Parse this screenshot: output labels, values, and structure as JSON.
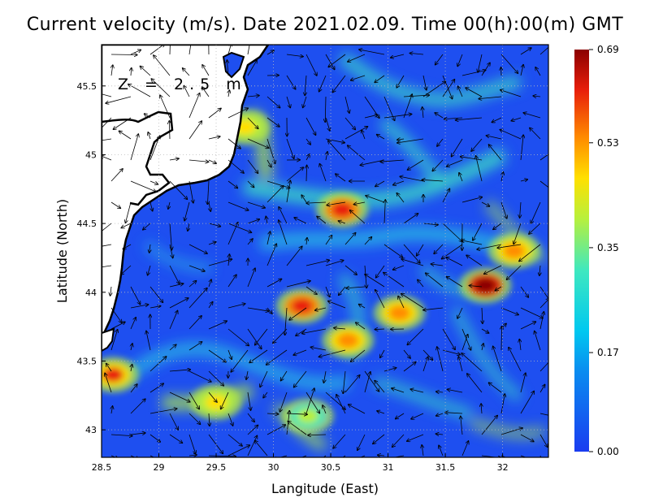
{
  "title": "Current velocity (m/s). Date 2021.02.09. Time 00(h):00(m) GMT",
  "depth_label": "Z = 2.5 m",
  "x_axis": {
    "label": "Langitude (East)",
    "ticks": [
      "28.5",
      "29",
      "29.5",
      "30",
      "30.5",
      "31",
      "31.5",
      "32"
    ],
    "range": [
      28.5,
      32.4
    ]
  },
  "y_axis": {
    "label": "Latitude (North)",
    "ticks": [
      "43",
      "43.5",
      "44",
      "44.5",
      "45",
      "45.5"
    ],
    "range": [
      42.8,
      45.8
    ]
  },
  "colorbar": {
    "ticks": [
      "0.00",
      "0.17",
      "0.35",
      "0.53",
      "0.69"
    ],
    "min": 0.0,
    "max": 0.69,
    "colors": [
      "#1a3cf0",
      "#00b8f0",
      "#3ee8c0",
      "#b8f03c",
      "#ffe000",
      "#ff8c00",
      "#e81e0a",
      "#8b0000"
    ]
  },
  "hotspots": [
    {
      "lon": 28.6,
      "lat": 43.4,
      "speed": 0.55
    },
    {
      "lon": 29.75,
      "lat": 45.2,
      "speed": 0.42
    },
    {
      "lon": 30.6,
      "lat": 44.6,
      "speed": 0.6
    },
    {
      "lon": 30.25,
      "lat": 43.9,
      "speed": 0.6
    },
    {
      "lon": 30.65,
      "lat": 43.65,
      "speed": 0.5
    },
    {
      "lon": 31.1,
      "lat": 43.85,
      "speed": 0.5
    },
    {
      "lon": 31.85,
      "lat": 44.05,
      "speed": 0.69
    },
    {
      "lon": 32.1,
      "lat": 44.3,
      "speed": 0.45
    },
    {
      "lon": 29.5,
      "lat": 43.2,
      "speed": 0.42
    },
    {
      "lon": 30.3,
      "lat": 43.1,
      "speed": 0.3
    }
  ]
}
